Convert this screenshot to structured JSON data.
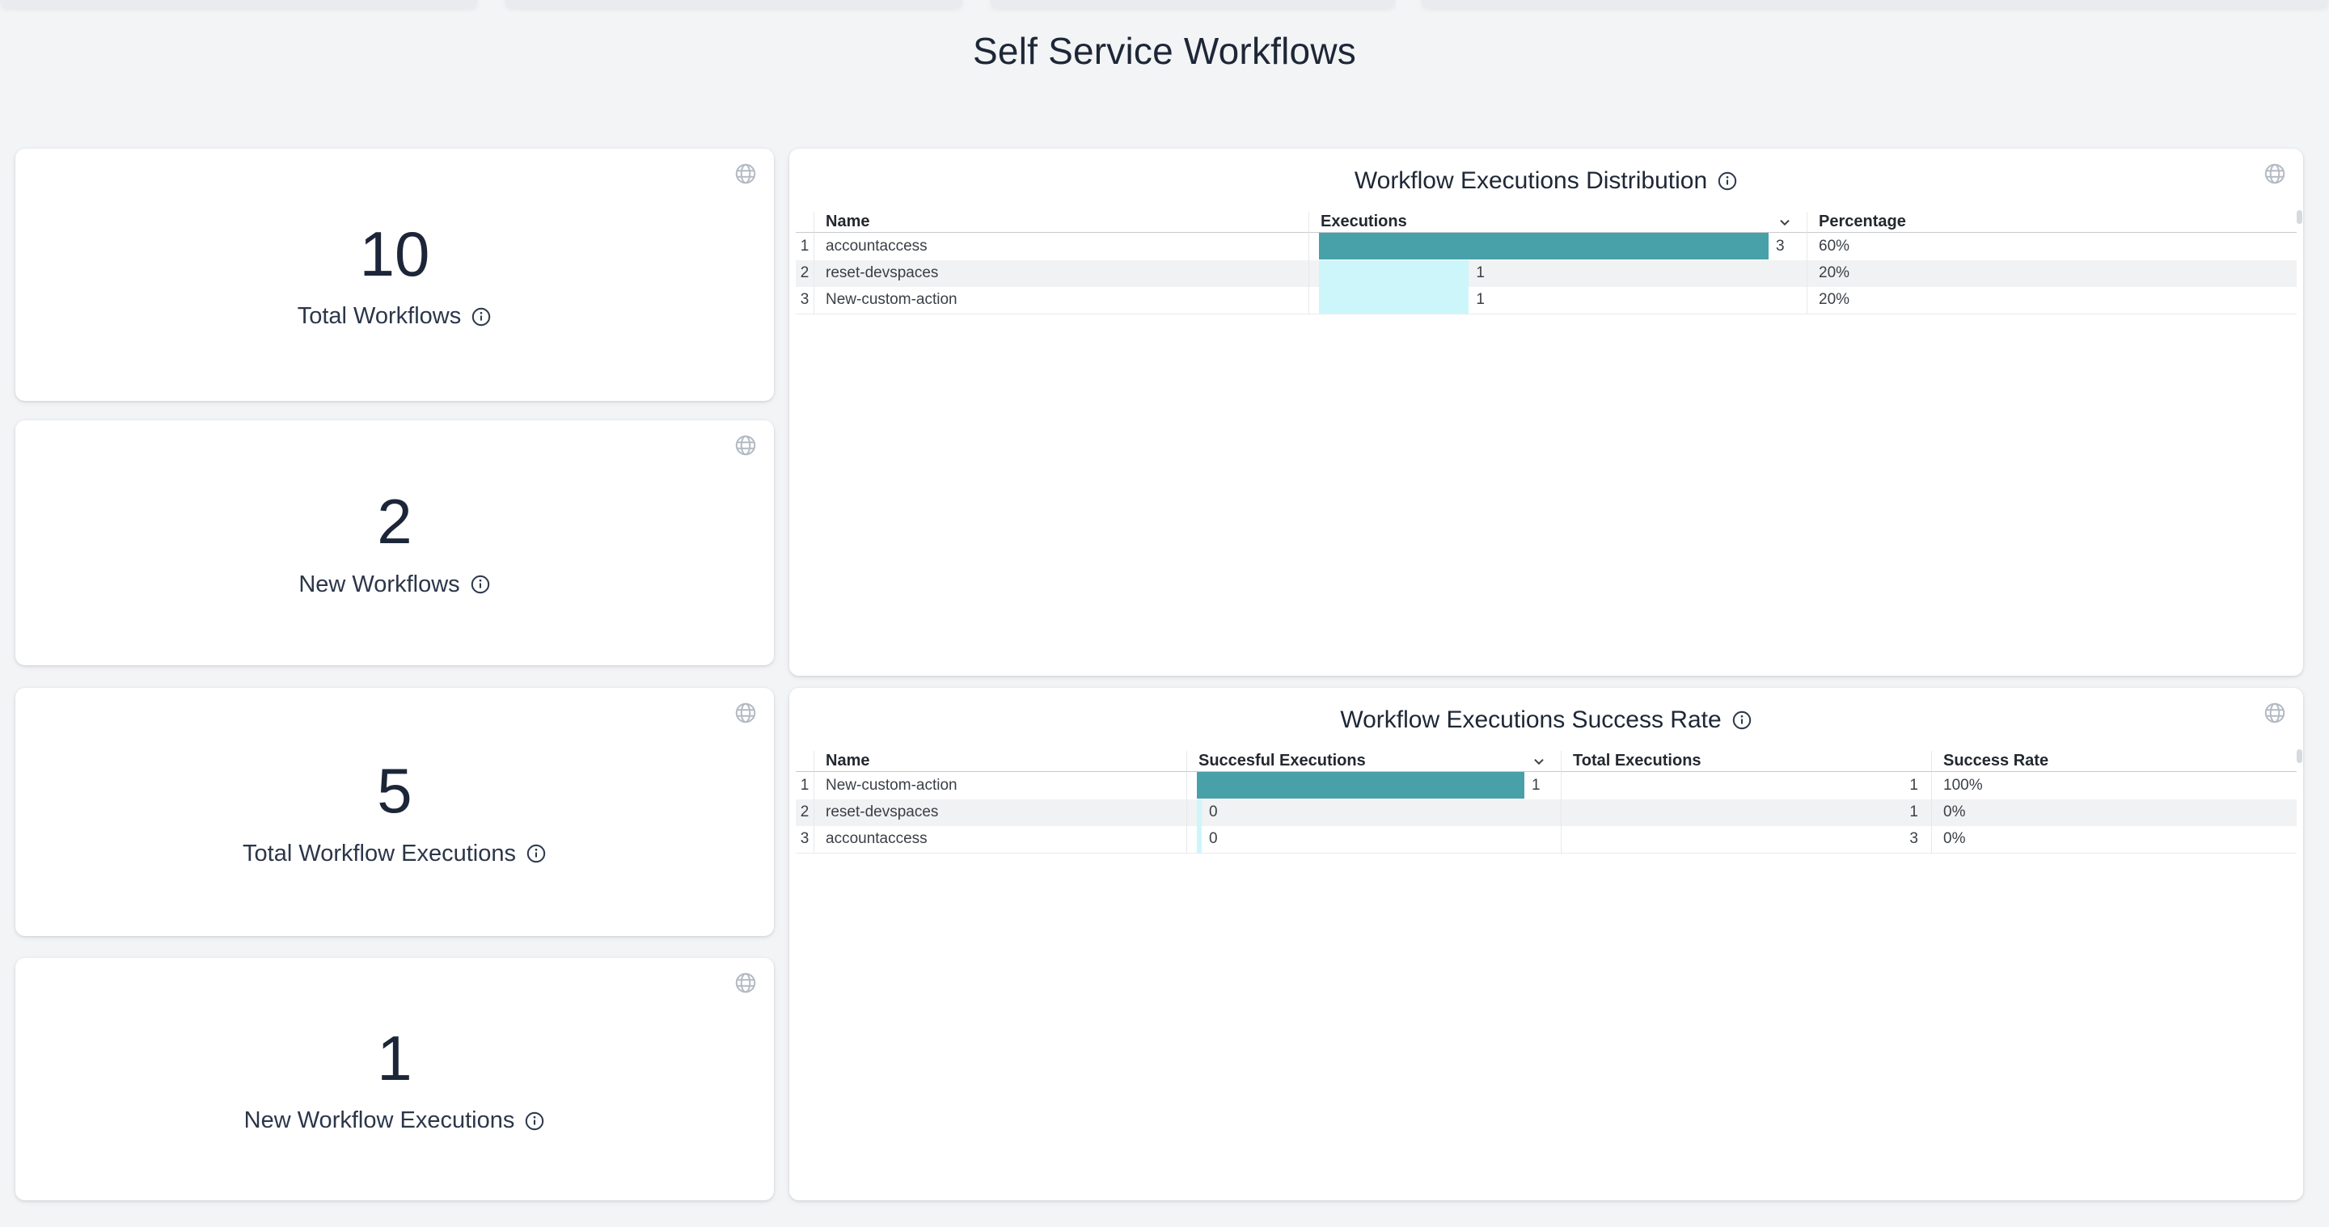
{
  "page": {
    "title": "Self Service Workflows"
  },
  "colors": {
    "teal_bar": "#48a1a9",
    "cyan_bar": "#cdf6fb",
    "stripe": "#f1f2f3",
    "page_bg": "#f3f4f6",
    "navy_text": "#1e2736"
  },
  "icons": {
    "globe": "globe-icon",
    "info": "info-icon",
    "sort": "chevron-down-icon"
  },
  "stat_cards": [
    {
      "value": "10",
      "label": "Total Workflows"
    },
    {
      "value": "2",
      "label": "New Workflows"
    },
    {
      "value": "5",
      "label": "Total Workflow Executions"
    },
    {
      "value": "1",
      "label": "New Workflow Executions"
    }
  ],
  "tables": [
    {
      "title": "Workflow Executions Distribution",
      "columns": [
        "Name",
        "Executions",
        "Percentage"
      ],
      "sort_column_index": 1,
      "extra_aligns": [
        "left"
      ],
      "rows": [
        {
          "index": "1",
          "name": "accountaccess",
          "bar_value": 3,
          "bar_label": "3",
          "extras": [
            "60%"
          ]
        },
        {
          "index": "2",
          "name": "reset-devspaces",
          "bar_value": 1,
          "bar_label": "1",
          "extras": [
            "20%"
          ]
        },
        {
          "index": "3",
          "name": "New-custom-action",
          "bar_value": 1,
          "bar_label": "1",
          "extras": [
            "20%"
          ]
        }
      ]
    },
    {
      "title": "Workflow Executions Success Rate",
      "columns": [
        "Name",
        "Succesful Executions",
        "Total Executions",
        "Success Rate"
      ],
      "sort_column_index": 1,
      "extra_aligns": [
        "right",
        "left"
      ],
      "rows": [
        {
          "index": "1",
          "name": "New-custom-action",
          "bar_value": 1,
          "bar_label": "1",
          "extras": [
            "1",
            "100%"
          ]
        },
        {
          "index": "2",
          "name": "reset-devspaces",
          "bar_value": 0,
          "bar_label": "0",
          "extras": [
            "1",
            "0%"
          ]
        },
        {
          "index": "3",
          "name": "accountaccess",
          "bar_value": 0,
          "bar_label": "0",
          "extras": [
            "3",
            "0%"
          ]
        }
      ]
    }
  ]
}
